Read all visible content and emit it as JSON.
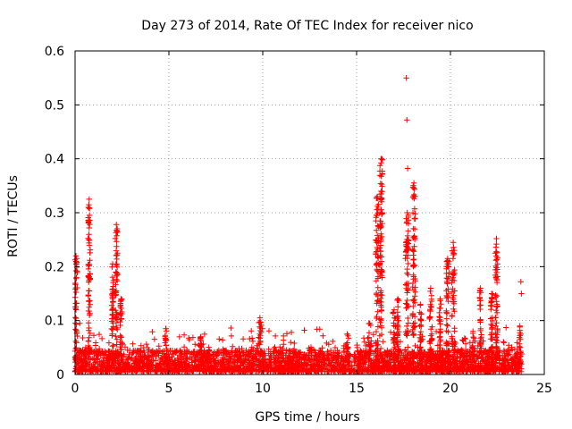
{
  "chart_data": {
    "type": "scatter",
    "title": "Day 273 of 2014, Rate Of TEC Index for receiver nico",
    "xlabel": "GPS time / hours",
    "ylabel": "ROTI / TECUs",
    "xlim": [
      0,
      25
    ],
    "ylim": [
      0,
      0.6
    ],
    "xticks": [
      0,
      5,
      10,
      15,
      20,
      25
    ],
    "yticks": [
      0,
      0.1,
      0.2,
      0.3,
      0.4,
      0.5,
      0.6
    ],
    "xtick_labels": [
      "0",
      "5",
      "10",
      "15",
      "20",
      "25"
    ],
    "ytick_labels": [
      "0",
      "0.1",
      "0.2",
      "0.3",
      "0.4",
      "0.5",
      "0.6"
    ],
    "grid": true,
    "marker": "+",
    "color": "#ff0000",
    "baseline": {
      "x_start": 0,
      "x_end": 23.8,
      "typical_min": 0.005,
      "typical_max": 0.045
    },
    "spikes": [
      {
        "x": 0.05,
        "width": 0.15,
        "peak": 0.22
      },
      {
        "x": 0.75,
        "width": 0.12,
        "peak": 0.325
      },
      {
        "x": 2.0,
        "width": 0.1,
        "peak": 0.205
      },
      {
        "x": 2.2,
        "width": 0.12,
        "peak": 0.278
      },
      {
        "x": 2.45,
        "width": 0.1,
        "peak": 0.14
      },
      {
        "x": 4.85,
        "width": 0.12,
        "peak": 0.085
      },
      {
        "x": 6.7,
        "width": 0.1,
        "peak": 0.07
      },
      {
        "x": 9.85,
        "width": 0.15,
        "peak": 0.105
      },
      {
        "x": 14.5,
        "width": 0.15,
        "peak": 0.075
      },
      {
        "x": 15.7,
        "width": 0.15,
        "peak": 0.095
      },
      {
        "x": 16.1,
        "width": 0.15,
        "peak": 0.33
      },
      {
        "x": 16.3,
        "width": 0.15,
        "peak": 0.4
      },
      {
        "x": 17.0,
        "width": 0.15,
        "peak": 0.12
      },
      {
        "x": 17.2,
        "width": 0.1,
        "peak": 0.14
      },
      {
        "x": 17.7,
        "width": 0.15,
        "peak": 0.3
      },
      {
        "x": 18.05,
        "width": 0.15,
        "peak": 0.355
      },
      {
        "x": 18.4,
        "width": 0.1,
        "peak": 0.13
      },
      {
        "x": 18.95,
        "width": 0.15,
        "peak": 0.16
      },
      {
        "x": 19.45,
        "width": 0.1,
        "peak": 0.14
      },
      {
        "x": 19.85,
        "width": 0.15,
        "peak": 0.215
      },
      {
        "x": 20.15,
        "width": 0.15,
        "peak": 0.245
      },
      {
        "x": 21.2,
        "width": 0.1,
        "peak": 0.08
      },
      {
        "x": 21.6,
        "width": 0.1,
        "peak": 0.16
      },
      {
        "x": 22.2,
        "width": 0.12,
        "peak": 0.15
      },
      {
        "x": 22.45,
        "width": 0.12,
        "peak": 0.252
      },
      {
        "x": 23.7,
        "width": 0.1,
        "peak": 0.09
      }
    ],
    "outliers": [
      {
        "x": 17.65,
        "y": 0.55
      },
      {
        "x": 17.68,
        "y": 0.472
      },
      {
        "x": 17.72,
        "y": 0.382
      },
      {
        "x": 17.6,
        "y": 0.215
      },
      {
        "x": 22.45,
        "y": 0.198
      },
      {
        "x": 23.75,
        "y": 0.172
      },
      {
        "x": 23.78,
        "y": 0.15
      },
      {
        "x": 0.25,
        "y": 0.095
      }
    ]
  }
}
